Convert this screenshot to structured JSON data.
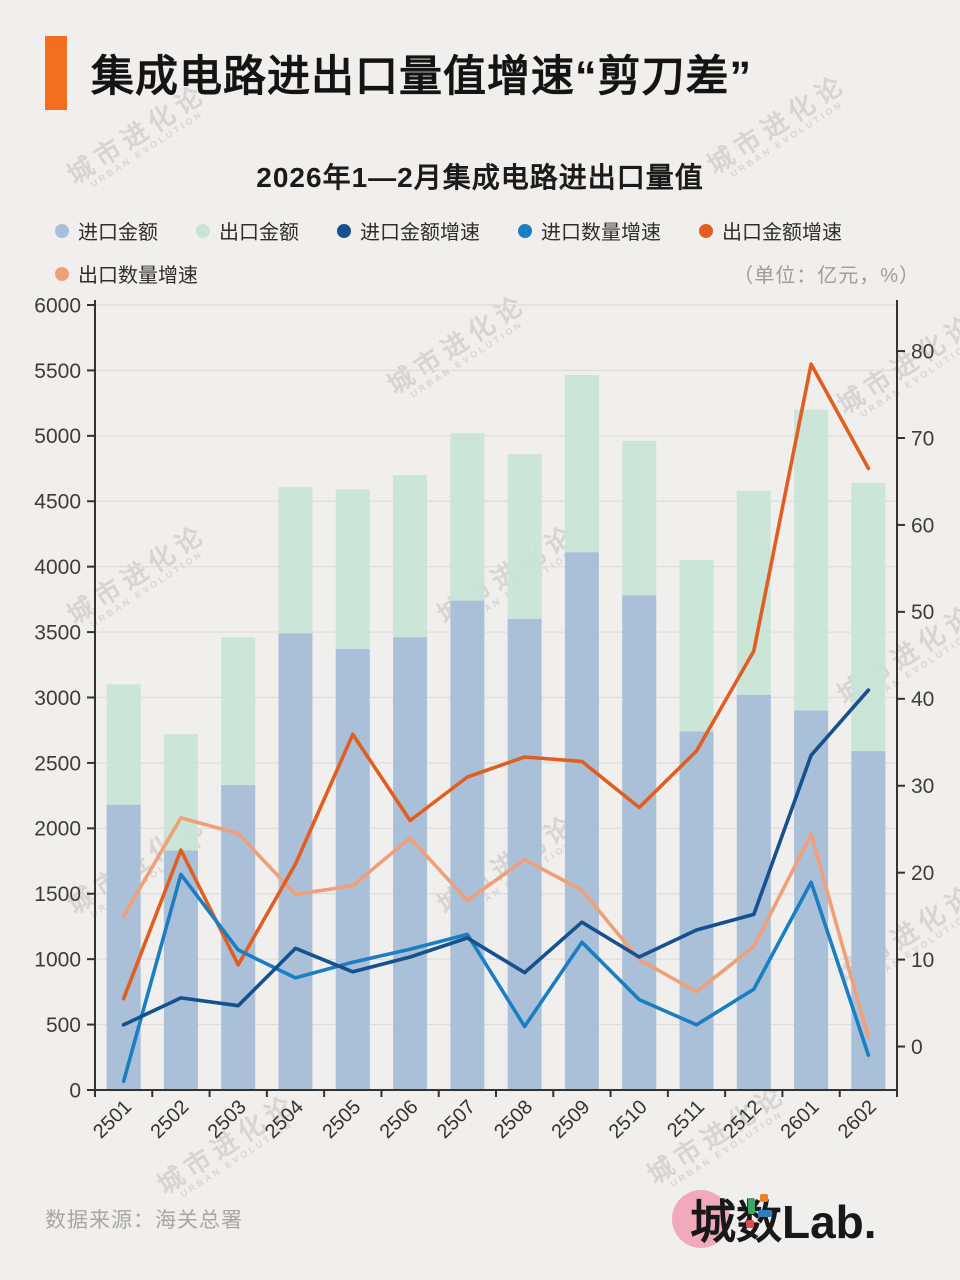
{
  "header": {
    "title": "集成电路进出口量值增速“剪刀差”"
  },
  "subtitle": "2026年1—2月集成电路进出口量值",
  "legend": {
    "items": [
      {
        "label": "进口金额",
        "series": "import_amount"
      },
      {
        "label": "出口金额",
        "series": "export_amount"
      },
      {
        "label": "进口金额增速",
        "series": "import_value_growth"
      },
      {
        "label": "进口数量增速",
        "series": "import_qty_growth"
      },
      {
        "label": "出口金额增速",
        "series": "export_value_growth"
      },
      {
        "label": "出口数量增速",
        "series": "export_qty_growth"
      }
    ],
    "unit_note": "（单位：亿元，%）"
  },
  "colors": {
    "accent": "#f26f21",
    "page_bg": "#f0efed",
    "grid": "#dddcd9",
    "axis": "#333333",
    "tick_label": "#3c3c3c",
    "watermark": "#c7c5c2",
    "import_amount": "#a8bed9",
    "export_amount": "#c8e4d8",
    "import_value_growth": "#15508f",
    "import_qty_growth": "#1c7ec2",
    "export_value_growth": "#e05f20",
    "export_qty_growth": "#efa079",
    "logo_pink": "#f2a9bb"
  },
  "chart_data": {
    "type": "bar+line combo, dual axis",
    "title": "2026年1—2月集成电路进出口量值",
    "unit": "亿元, %",
    "categories": [
      "2501",
      "2502",
      "2503",
      "2504",
      "2505",
      "2506",
      "2507",
      "2508",
      "2509",
      "2510",
      "2511",
      "2512",
      "2601",
      "2602"
    ],
    "bar_series": [
      {
        "name": "进口金额",
        "axis": "left",
        "color_key": "import_amount",
        "values": [
          2180,
          1830,
          2330,
          3490,
          3370,
          3460,
          3740,
          3600,
          4110,
          3780,
          2740,
          3020,
          2900,
          2590
        ]
      },
      {
        "name": "出口金额",
        "axis": "left",
        "color_key": "export_amount",
        "values": [
          3100,
          2720,
          3460,
          4610,
          4590,
          4700,
          5020,
          4860,
          5465,
          4960,
          4050,
          4580,
          5200,
          4640
        ]
      }
    ],
    "line_series": [
      {
        "name": "出口数量增速",
        "axis": "right",
        "color_key": "export_qty_growth",
        "values": [
          15.0,
          26.3,
          24.5,
          17.5,
          18.5,
          24.0,
          16.8,
          21.5,
          18.0,
          10.0,
          6.3,
          11.5,
          24.4,
          1.0
        ]
      },
      {
        "name": "出口金额增速",
        "axis": "right",
        "color_key": "export_value_growth",
        "values": [
          5.5,
          22.6,
          9.4,
          21.0,
          35.9,
          26.0,
          31.0,
          33.3,
          32.8,
          27.5,
          34.0,
          45.5,
          78.5,
          66.5
        ]
      },
      {
        "name": "进口数量增速",
        "axis": "right",
        "color_key": "import_qty_growth",
        "values": [
          -4.0,
          19.8,
          11.1,
          7.9,
          9.7,
          11.2,
          12.9,
          2.3,
          12.0,
          5.4,
          2.5,
          6.6,
          18.9,
          -1.0
        ]
      },
      {
        "name": "进口金额增速",
        "axis": "right",
        "color_key": "import_value_growth",
        "values": [
          2.5,
          5.6,
          4.7,
          11.3,
          8.6,
          10.3,
          12.5,
          8.5,
          14.3,
          10.3,
          13.4,
          15.2,
          33.5,
          41.0
        ]
      }
    ],
    "left_axis": {
      "min": 0,
      "max": 6000,
      "ticks": [
        0,
        500,
        1000,
        1500,
        2000,
        2500,
        3000,
        3500,
        4000,
        4500,
        5000,
        5500,
        6000
      ]
    },
    "right_axis": {
      "min": -5,
      "max": 85.3,
      "ticks": [
        0,
        10,
        20,
        30,
        40,
        50,
        60,
        70,
        80
      ]
    },
    "grid": true,
    "legend_position": "top"
  },
  "watermark": {
    "line1": "城市进化论",
    "line2": "URBAN EVOLUTION"
  },
  "footer": {
    "source": "数据来源：海关总署",
    "logo_text": "城数Lab."
  }
}
